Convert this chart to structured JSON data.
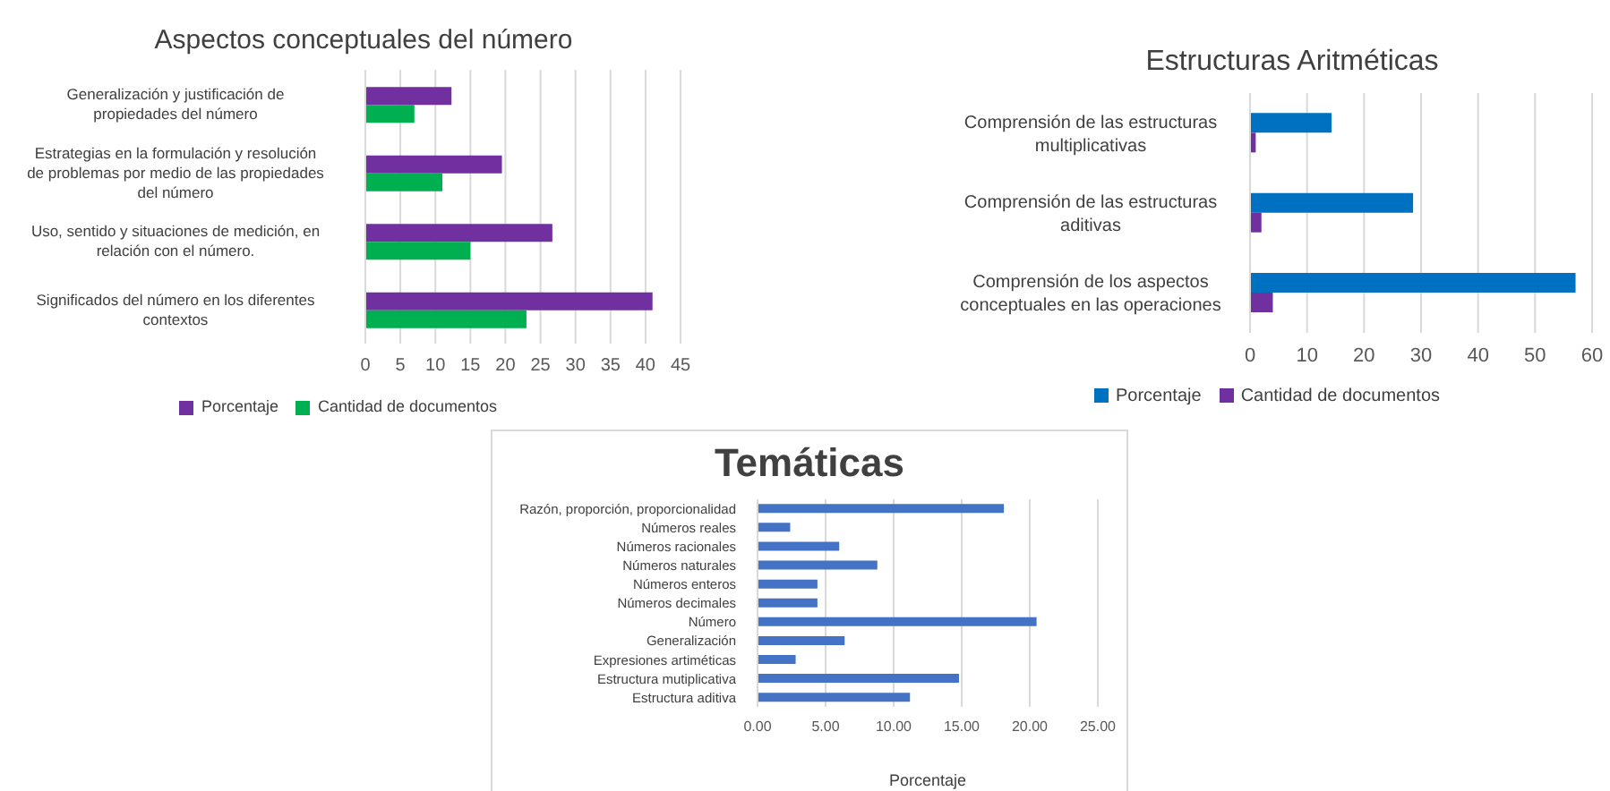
{
  "chart_data": [
    {
      "type": "bar",
      "orientation": "horizontal",
      "title": "Aspectos conceptuales del número",
      "categories": [
        "Generalización y justificación de propiedades del número",
        "Estrategias en la formulación y resolución de problemas por medio de las propiedades del número",
        "Uso, sentido y situaciones de medición, en relación con el número.",
        "Significados del número en los diferentes contextos"
      ],
      "series": [
        {
          "name": "Porcentaje",
          "color": "#7030a0",
          "values": [
            12.3,
            19.5,
            26.7,
            41
          ]
        },
        {
          "name": "Cantidad de documentos",
          "color": "#00b050",
          "values": [
            7,
            11,
            15,
            23
          ]
        }
      ],
      "xlim": [
        0,
        45
      ],
      "xticks": [
        0,
        5,
        10,
        15,
        20,
        25,
        30,
        35,
        40,
        45
      ],
      "grid": "x",
      "legend": "bottom"
    },
    {
      "type": "bar",
      "orientation": "horizontal",
      "title": "Estructuras Aritméticas",
      "categories": [
        "Comprensión de las estructuras multiplicativas",
        "Comprensión de las estructuras aditivas",
        "Comprensión de los aspectos conceptuales en las operaciones"
      ],
      "series": [
        {
          "name": "Porcentaje",
          "color": "#0070c0",
          "values": [
            14.3,
            28.6,
            57.1
          ]
        },
        {
          "name": "Cantidad de documentos",
          "color": "#7030a0",
          "values": [
            1,
            2,
            4
          ]
        }
      ],
      "xlim": [
        0,
        60
      ],
      "xticks": [
        0,
        10,
        20,
        30,
        40,
        50,
        60
      ],
      "grid": "x",
      "legend": "bottom"
    },
    {
      "type": "bar",
      "orientation": "horizontal",
      "title": "Temáticas",
      "xlabel": "Porcentaje",
      "categories": [
        "Razón, proporción, proporcionalidad",
        "Números reales",
        "Números racionales",
        "Números naturales",
        "Números enteros",
        "Números decimales",
        "Número",
        "Generalización",
        "Expresiones artiméticas",
        "Estructura mutiplicativa",
        "Estructura aditiva"
      ],
      "values": [
        18.1,
        2.4,
        6.0,
        8.8,
        4.4,
        4.4,
        20.5,
        6.4,
        2.8,
        14.8,
        11.2
      ],
      "color": "#4472c4",
      "xlim": [
        0,
        25
      ],
      "xticks": [
        {
          "value": 0,
          "label": "0.00"
        },
        {
          "value": 5,
          "label": "5.00"
        },
        {
          "value": 10,
          "label": "10.00"
        },
        {
          "value": 15,
          "label": "15.00"
        },
        {
          "value": 20,
          "label": "20.00"
        },
        {
          "value": 25,
          "label": "25.00"
        }
      ],
      "grid": "x"
    }
  ]
}
